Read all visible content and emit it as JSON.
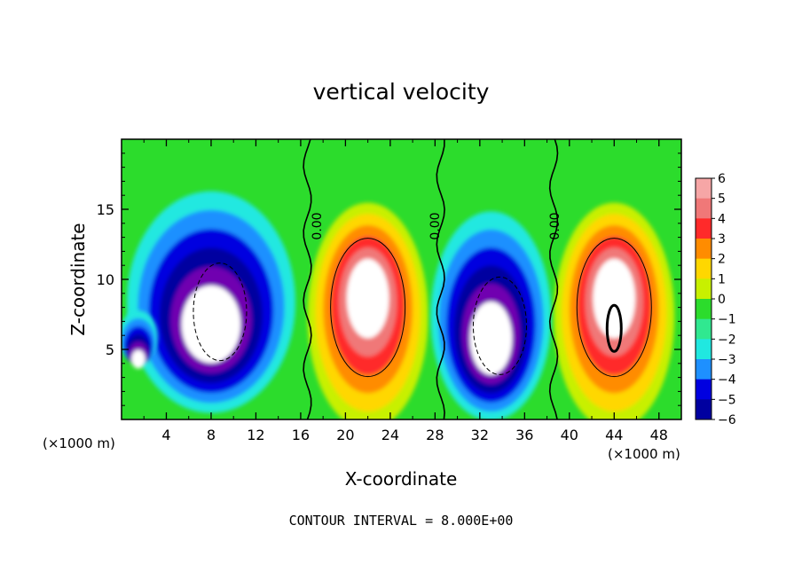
{
  "chart_data": {
    "type": "heatmap",
    "title": "vertical velocity",
    "xlabel": "X-coordinate",
    "ylabel": "Z-coordinate",
    "x_unit_label": "(×1000 m)",
    "xlim": [
      0,
      50
    ],
    "ylim": [
      0,
      20
    ],
    "x_ticks": [
      "4",
      "8",
      "12",
      "16",
      "20",
      "24",
      "28",
      "32",
      "36",
      "40",
      "44",
      "48"
    ],
    "y_ticks": [
      "5",
      "10",
      "15"
    ],
    "footer": "CONTOUR INTERVAL = 8.000E+00",
    "contour_labels": [
      "0.00",
      "0.00",
      "0.00"
    ],
    "colorbar": {
      "range": [
        -6,
        6
      ],
      "tick_labels": [
        "6",
        "5",
        "4",
        "3",
        "2",
        "1",
        "0",
        "−1",
        "−2",
        "−3",
        "−4",
        "−5",
        "−6"
      ],
      "colors": [
        "#f6a6a6",
        "#f07878",
        "#ff2a2a",
        "#ff8c00",
        "#ffd700",
        "#c8f000",
        "#2cdc2c",
        "#30e890",
        "#20e8e0",
        "#1e90ff",
        "#0000e0",
        "#0000a0",
        "#7000b0"
      ]
    },
    "features": [
      {
        "name": "downdraft",
        "x_center": 8,
        "z_center": 8,
        "sign": "negative"
      },
      {
        "name": "updraft",
        "x_center": 22,
        "z_center": 8,
        "sign": "positive"
      },
      {
        "name": "downdraft",
        "x_center": 33,
        "z_center": 7,
        "sign": "negative"
      },
      {
        "name": "updraft",
        "x_center": 44,
        "z_center": 8,
        "sign": "positive"
      },
      {
        "name": "downdraft",
        "x_center": 1.5,
        "z_center": 5.5,
        "sign": "negative"
      }
    ]
  }
}
